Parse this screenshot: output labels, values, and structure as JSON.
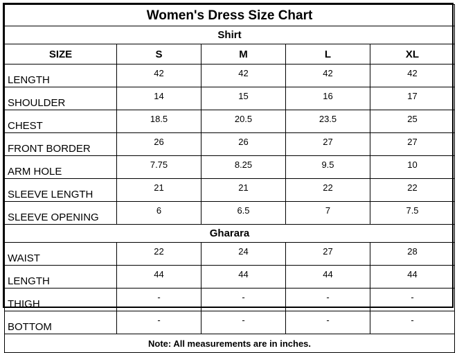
{
  "title": "Women's Dress Size Chart",
  "size_header": "SIZE",
  "sizes": [
    "S",
    "M",
    "L",
    "XL"
  ],
  "sections": [
    {
      "name": "Shirt",
      "rows": [
        {
          "label": "LENGTH",
          "values": [
            "42",
            "42",
            "42",
            "42"
          ]
        },
        {
          "label": "SHOULDER",
          "values": [
            "14",
            "15",
            "16",
            "17"
          ]
        },
        {
          "label": "CHEST",
          "values": [
            "18.5",
            "20.5",
            "23.5",
            "25"
          ]
        },
        {
          "label": "FRONT BORDER",
          "values": [
            "26",
            "26",
            "27",
            "27"
          ]
        },
        {
          "label": "ARM HOLE",
          "values": [
            "7.75",
            "8.25",
            "9.5",
            "10"
          ]
        },
        {
          "label": "SLEEVE LENGTH",
          "values": [
            "21",
            "21",
            "22",
            "22"
          ]
        },
        {
          "label": "SLEEVE OPENING",
          "values": [
            "6",
            "6.5",
            "7",
            "7.5"
          ]
        }
      ]
    },
    {
      "name": "Gharara",
      "rows": [
        {
          "label": "WAIST",
          "values": [
            "22",
            "24",
            "27",
            "28"
          ]
        },
        {
          "label": "LENGTH",
          "values": [
            "44",
            "44",
            "44",
            "44"
          ]
        },
        {
          "label": "THIGH",
          "values": [
            "-",
            "-",
            "-",
            "-"
          ]
        },
        {
          "label": "BOTTOM",
          "values": [
            "-",
            "-",
            "-",
            "-"
          ]
        }
      ]
    }
  ],
  "note": "Note: All measurements are in inches.",
  "colors": {
    "border": "#000000",
    "background": "#ffffff",
    "text": "#000000"
  }
}
